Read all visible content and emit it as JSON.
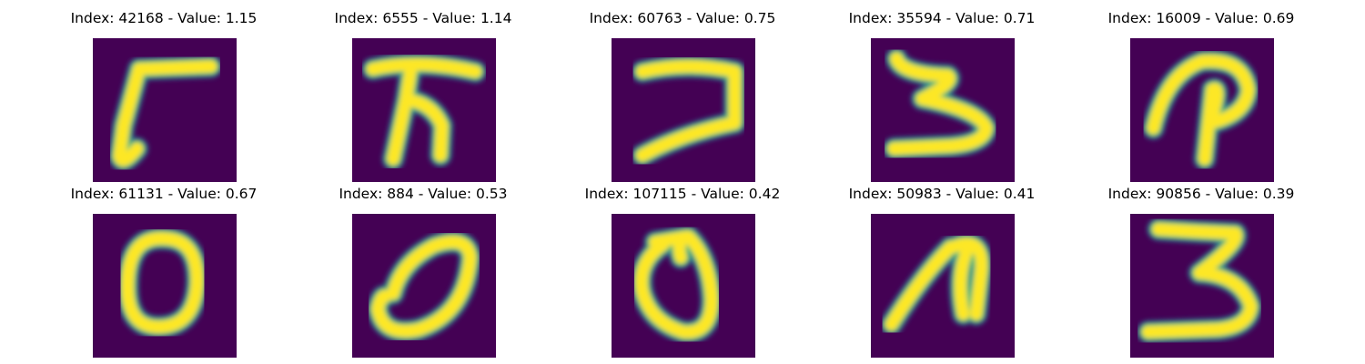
{
  "colors": {
    "background": "#440154",
    "stroke_outer": "#31688e",
    "stroke_mid": "#35b779",
    "stroke_inner": "#fde725"
  },
  "panels": [
    {
      "index": "42168",
      "value": "1.15",
      "title": "Index: 42168 - Value: 1.15",
      "glyph": "7"
    },
    {
      "index": "6555",
      "value": "1.14",
      "title": "Index: 6555 - Value: 1.14",
      "glyph": "T"
    },
    {
      "index": "60763",
      "value": "0.75",
      "title": "Index: 60763 - Value: 0.75",
      "glyph": "7"
    },
    {
      "index": "35594",
      "value": "0.71",
      "title": "Index: 35594 - Value: 0.71",
      "glyph": "3"
    },
    {
      "index": "16009",
      "value": "0.69",
      "title": "Index: 16009 - Value: 0.69",
      "glyph": "P"
    },
    {
      "index": "61131",
      "value": "0.67",
      "title": "Index: 61131 - Value: 0.67",
      "glyph": "0"
    },
    {
      "index": "884",
      "value": "0.53",
      "title": "Index: 884 - Value: 0.53",
      "glyph": "0"
    },
    {
      "index": "107115",
      "value": "0.42",
      "title": "Index: 107115 - Value: 0.42",
      "glyph": "0"
    },
    {
      "index": "50983",
      "value": "0.41",
      "title": "Index: 50983 - Value: 0.41",
      "glyph": "1"
    },
    {
      "index": "90856",
      "value": "0.39",
      "title": "Index: 90856 - Value: 0.39",
      "glyph": "3"
    }
  ]
}
